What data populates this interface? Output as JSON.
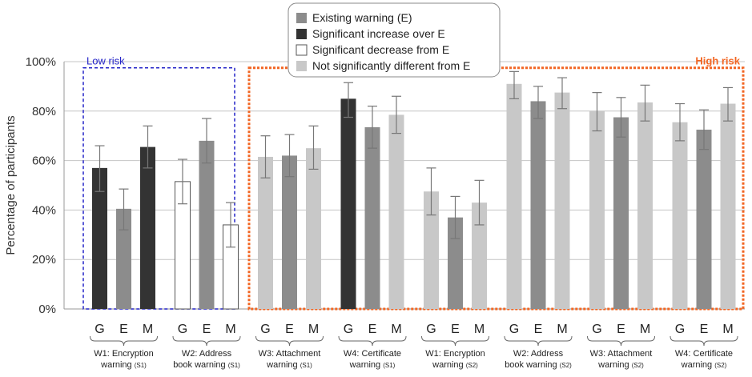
{
  "chart_data": {
    "type": "bar",
    "ylabel": "Percentage of participants",
    "ylim": [
      0,
      100
    ],
    "yticks": [
      "0%",
      "20%",
      "40%",
      "60%",
      "80%",
      "100%"
    ],
    "grid": true,
    "legend_position": "top-center",
    "legend": [
      {
        "key": "existing",
        "label": "Existing warning (E)",
        "color": "#8c8c8c",
        "outline": false
      },
      {
        "key": "increase",
        "label": "Significant increase over E",
        "color": "#333333",
        "outline": false
      },
      {
        "key": "decrease",
        "label": "Significant decrease from E",
        "color": "#ffffff",
        "outline": true
      },
      {
        "key": "nodiff",
        "label": "Not significantly different from E",
        "color": "#c8c8c8",
        "outline": false
      }
    ],
    "regions": [
      {
        "label": "Low risk",
        "color": "#2424c8",
        "groups": [
          0,
          1
        ]
      },
      {
        "label": "High risk",
        "color": "#f26522",
        "groups": [
          2,
          3,
          4,
          5,
          6,
          7
        ]
      }
    ],
    "bar_labels": [
      "G",
      "E",
      "M"
    ],
    "groups": [
      {
        "name": "W1: Encryption",
        "line2": "warning",
        "sub": "(S1)",
        "values": [
          57,
          40.5,
          65.5
        ],
        "err_low": [
          47.5,
          32,
          57
        ],
        "err_high": [
          66,
          48.5,
          74
        ],
        "kinds": [
          "increase",
          "existing",
          "increase"
        ]
      },
      {
        "name": "W2: Address",
        "line2": "book warning",
        "sub": "(S1)",
        "values": [
          51.5,
          68,
          34
        ],
        "err_low": [
          42.5,
          59,
          25
        ],
        "err_high": [
          60.5,
          77,
          43
        ],
        "kinds": [
          "decrease",
          "existing",
          "decrease"
        ]
      },
      {
        "name": "W3: Attachment",
        "line2": "warning",
        "sub": "(S1)",
        "values": [
          61.5,
          62,
          65
        ],
        "err_low": [
          53,
          53.5,
          56.5
        ],
        "err_high": [
          70,
          70.5,
          74
        ],
        "kinds": [
          "nodiff",
          "existing",
          "nodiff"
        ]
      },
      {
        "name": "W4: Certificate",
        "line2": "warning",
        "sub": "(S1)",
        "values": [
          85,
          73.5,
          78.5
        ],
        "err_low": [
          77.5,
          65,
          71
        ],
        "err_high": [
          91.5,
          82,
          86
        ],
        "kinds": [
          "increase",
          "existing",
          "nodiff"
        ]
      },
      {
        "name": "W1: Encryption",
        "line2": "warning",
        "sub": "(S2)",
        "values": [
          47.5,
          37,
          43
        ],
        "err_low": [
          38,
          28.5,
          34
        ],
        "err_high": [
          57,
          45.5,
          52
        ],
        "kinds": [
          "nodiff",
          "existing",
          "nodiff"
        ]
      },
      {
        "name": "W2: Address",
        "line2": "book warning",
        "sub": "(S2)",
        "values": [
          91,
          84,
          87.5
        ],
        "err_low": [
          85,
          77,
          81
        ],
        "err_high": [
          96,
          90,
          93.5
        ],
        "kinds": [
          "nodiff",
          "existing",
          "nodiff"
        ]
      },
      {
        "name": "W3: Attachment",
        "line2": "warning",
        "sub": "(S2)",
        "values": [
          80,
          77.5,
          83.5
        ],
        "err_low": [
          72,
          69.5,
          76
        ],
        "err_high": [
          87.5,
          85.5,
          90.5
        ],
        "kinds": [
          "nodiff",
          "existing",
          "nodiff"
        ]
      },
      {
        "name": "W4: Certificate",
        "line2": "warning",
        "sub": "(S2)",
        "values": [
          75.5,
          72.5,
          83
        ],
        "err_low": [
          68,
          64.5,
          76
        ],
        "err_high": [
          83,
          80.5,
          89.5
        ],
        "kinds": [
          "nodiff",
          "existing",
          "nodiff"
        ]
      }
    ]
  }
}
